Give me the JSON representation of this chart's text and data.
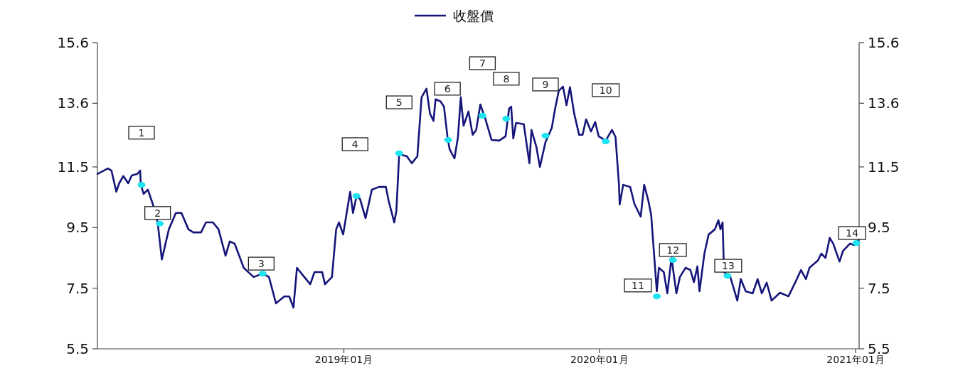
{
  "chart_data": {
    "type": "line",
    "legend": "top",
    "xlim": [
      "2018-01-14",
      "2021-01-06"
    ],
    "ylim": [
      5.5,
      15.6
    ],
    "yticks": [
      5.5,
      7.5,
      9.5,
      11.5,
      13.6,
      15.6
    ],
    "y2lim": [
      5.5,
      15.6
    ],
    "y2ticks": [
      5.5,
      7.5,
      9.5,
      11.5,
      13.6,
      15.6
    ],
    "xticks": [
      {
        "value": "2019-01-01",
        "label": "2019年01月"
      },
      {
        "value": "2020-01-01",
        "label": "2020年01月"
      },
      {
        "value": "2021-01-01",
        "label": "2021年01月"
      }
    ],
    "series": [
      {
        "name": "收盤價",
        "color": "#15157a",
        "x": [
          "2018-01-14",
          "2018-01-29",
          "2018-02-03",
          "2018-02-10",
          "2018-02-14",
          "2018-02-20",
          "2018-02-27",
          "2018-03-04",
          "2018-03-12",
          "2018-03-16",
          "2018-03-17",
          "2018-03-21",
          "2018-03-27",
          "2018-04-03",
          "2018-04-10",
          "2018-04-16",
          "2018-04-26",
          "2018-05-06",
          "2018-05-14",
          "2018-05-24",
          "2018-05-31",
          "2018-06-11",
          "2018-06-18",
          "2018-06-28",
          "2018-07-06",
          "2018-07-16",
          "2018-07-22",
          "2018-07-29",
          "2018-08-11",
          "2018-08-25",
          "2018-09-07",
          "2018-09-16",
          "2018-09-26",
          "2018-10-08",
          "2018-10-15",
          "2018-10-21",
          "2018-10-26",
          "2018-11-04",
          "2018-11-14",
          "2018-11-20",
          "2018-12-01",
          "2018-12-05",
          "2018-12-15",
          "2018-12-21",
          "2018-12-25",
          "2018-12-31",
          "2019-01-05",
          "2019-01-10",
          "2019-01-14",
          "2019-01-19",
          "2019-01-24",
          "2019-02-01",
          "2019-02-10",
          "2019-02-20",
          "2019-03-02",
          "2019-03-06",
          "2019-03-14",
          "2019-03-17",
          "2019-03-21",
          "2019-04-01",
          "2019-04-08",
          "2019-04-16",
          "2019-04-22",
          "2019-04-29",
          "2019-05-04",
          "2019-05-09",
          "2019-05-12",
          "2019-05-19",
          "2019-05-24",
          "2019-05-29",
          "2019-06-01",
          "2019-06-08",
          "2019-06-13",
          "2019-06-17",
          "2019-06-21",
          "2019-06-28",
          "2019-07-04",
          "2019-07-09",
          "2019-07-15",
          "2019-07-22",
          "2019-07-31",
          "2019-08-11",
          "2019-08-20",
          "2019-08-25",
          "2019-08-28",
          "2019-08-31",
          "2019-09-04",
          "2019-09-15",
          "2019-09-23",
          "2019-09-26",
          "2019-10-03",
          "2019-10-08",
          "2019-10-16",
          "2019-10-25",
          "2019-10-30",
          "2019-11-04",
          "2019-11-10",
          "2019-11-15",
          "2019-11-20",
          "2019-11-26",
          "2019-12-03",
          "2019-12-08",
          "2019-12-13",
          "2019-12-20",
          "2019-12-26",
          "2019-12-31",
          "2020-01-10",
          "2020-01-19",
          "2020-01-24",
          "2020-01-29",
          "2020-01-30",
          "2020-02-04",
          "2020-02-14",
          "2020-02-20",
          "2020-02-29",
          "2020-03-05",
          "2020-03-11",
          "2020-03-15",
          "2020-03-20",
          "2020-03-23",
          "2020-03-26",
          "2020-04-02",
          "2020-04-07",
          "2020-04-13",
          "2020-04-20",
          "2020-04-25",
          "2020-05-03",
          "2020-05-10",
          "2020-05-15",
          "2020-05-20",
          "2020-05-23",
          "2020-05-30",
          "2020-06-05",
          "2020-06-14",
          "2020-06-19",
          "2020-06-22",
          "2020-06-25",
          "2020-06-27",
          "2020-07-06",
          "2020-07-16",
          "2020-07-21",
          "2020-07-28",
          "2020-08-07",
          "2020-08-14",
          "2020-08-20",
          "2020-08-27",
          "2020-09-03",
          "2020-09-15",
          "2020-09-27",
          "2020-10-07",
          "2020-10-15",
          "2020-10-22",
          "2020-10-27",
          "2020-11-08",
          "2020-11-13",
          "2020-11-19",
          "2020-11-25",
          "2020-11-30",
          "2020-12-09",
          "2020-12-14",
          "2020-12-24",
          "2020-12-30",
          "2021-01-06"
        ],
        "values": [
          11.27,
          11.45,
          11.38,
          10.68,
          10.96,
          11.2,
          10.96,
          11.22,
          11.27,
          11.38,
          10.91,
          10.61,
          10.75,
          10.28,
          9.67,
          8.45,
          9.44,
          9.98,
          9.98,
          9.44,
          9.34,
          9.34,
          9.67,
          9.67,
          9.44,
          8.57,
          9.04,
          8.97,
          8.17,
          7.87,
          7.98,
          7.87,
          7.0,
          7.23,
          7.23,
          6.86,
          8.17,
          7.91,
          7.63,
          8.03,
          8.03,
          7.63,
          7.87,
          9.44,
          9.67,
          9.27,
          9.98,
          10.68,
          9.98,
          10.52,
          10.45,
          9.81,
          10.75,
          10.84,
          10.84,
          10.38,
          9.67,
          10.05,
          11.92,
          11.85,
          11.62,
          11.85,
          13.8,
          14.08,
          13.26,
          13.02,
          13.73,
          13.66,
          13.49,
          12.49,
          12.09,
          11.78,
          12.49,
          13.8,
          12.86,
          13.33,
          12.56,
          12.72,
          13.56,
          13.09,
          12.39,
          12.37,
          12.51,
          13.42,
          13.49,
          12.44,
          12.95,
          12.91,
          11.62,
          12.72,
          12.16,
          11.5,
          12.32,
          12.79,
          13.45,
          14.01,
          14.15,
          13.54,
          14.13,
          13.26,
          12.56,
          12.56,
          13.07,
          12.67,
          12.98,
          12.51,
          12.37,
          12.72,
          12.49,
          10.91,
          10.26,
          10.91,
          10.84,
          10.28,
          9.86,
          10.91,
          10.38,
          9.91,
          8.34,
          7.4,
          8.17,
          8.03,
          7.33,
          8.5,
          7.33,
          7.87,
          8.17,
          8.1,
          7.7,
          8.22,
          7.4,
          8.64,
          9.27,
          9.44,
          9.74,
          9.44,
          9.67,
          8.03,
          7.87,
          7.09,
          7.8,
          7.4,
          7.33,
          7.8,
          7.33,
          7.68,
          7.09,
          7.35,
          7.23,
          7.7,
          8.1,
          7.8,
          8.17,
          8.41,
          8.64,
          8.5,
          9.16,
          8.97,
          8.38,
          8.73,
          8.97,
          8.92,
          9.11
        ]
      },
      {
        "type": "scatter",
        "marker": "circle",
        "color": "#1ee3f0",
        "x": [
          "2018-03-18",
          "2018-04-13",
          "2018-09-07",
          "2019-01-19",
          "2019-03-21",
          "2019-05-30",
          "2019-07-18",
          "2019-08-21",
          "2019-10-16",
          "2020-01-10",
          "2020-03-23",
          "2020-04-15",
          "2020-07-02",
          "2021-01-02"
        ],
        "values": [
          10.91,
          9.63,
          7.98,
          10.54,
          11.95,
          12.39,
          13.19,
          13.09,
          12.53,
          12.34,
          7.23,
          8.43,
          7.91,
          8.99
        ]
      }
    ],
    "annotations": [
      {
        "text": "1",
        "x": "2018-03-18",
        "y": 12.63
      },
      {
        "text": "2",
        "x": "2018-04-10",
        "y": 9.98
      },
      {
        "text": "3",
        "x": "2018-09-05",
        "y": 8.31
      },
      {
        "text": "4",
        "x": "2019-01-17",
        "y": 12.25
      },
      {
        "text": "5",
        "x": "2019-03-21",
        "y": 13.63
      },
      {
        "text": "6",
        "x": "2019-05-29",
        "y": 14.08
      },
      {
        "text": "7",
        "x": "2019-07-18",
        "y": 14.92
      },
      {
        "text": "8",
        "x": "2019-08-21",
        "y": 14.41
      },
      {
        "text": "9",
        "x": "2019-10-16",
        "y": 14.22
      },
      {
        "text": "10",
        "x": "2020-01-10",
        "y": 14.03
      },
      {
        "text": "11",
        "x": "2020-02-25",
        "y": 7.59
      },
      {
        "text": "12",
        "x": "2020-04-15",
        "y": 8.76
      },
      {
        "text": "13",
        "x": "2020-07-03",
        "y": 8.24
      },
      {
        "text": "14",
        "x": "2020-12-27",
        "y": 9.32
      }
    ]
  }
}
